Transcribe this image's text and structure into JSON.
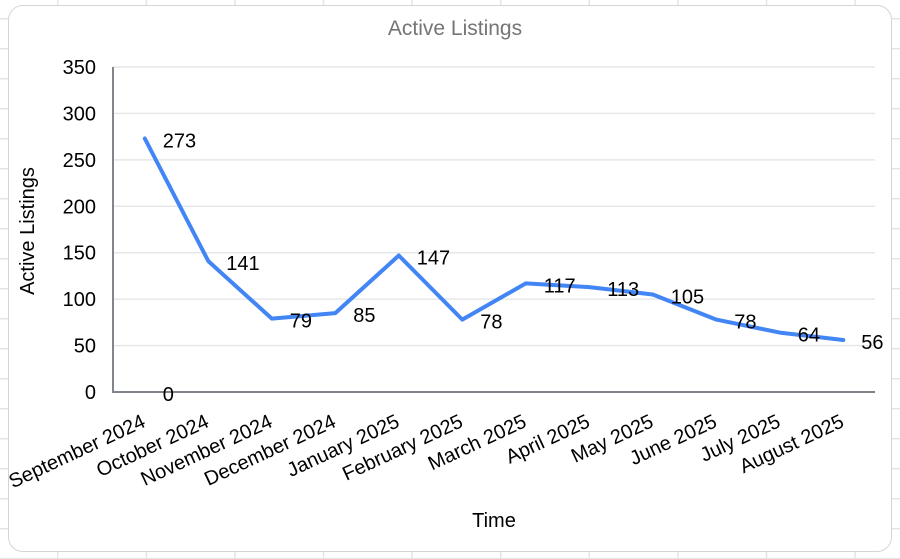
{
  "chart_data": {
    "type": "line",
    "title": "Active Listings",
    "xlabel": "Time",
    "ylabel": "Active Listings",
    "categories": [
      "September 2024",
      "October 2024",
      "November 2024",
      "December 2024",
      "January 2025",
      "February 2025",
      "March 2025",
      "April 2025",
      "May 2025",
      "June 2025",
      "July 2025",
      "August 2025"
    ],
    "series": [
      {
        "name": "Active Listings",
        "color": "#4285f4",
        "values": [
          273,
          141,
          79,
          85,
          147,
          78,
          117,
          113,
          105,
          78,
          64,
          56
        ]
      }
    ],
    "extra_point_labels": [
      {
        "text": "0",
        "category_index": 0,
        "value": 0
      }
    ],
    "yticks": [
      0,
      50,
      100,
      150,
      200,
      250,
      300,
      350
    ],
    "ylim": [
      0,
      350
    ],
    "grid": true,
    "legend_position": "none",
    "x_label_rotation_deg": -25,
    "data_labels": true
  },
  "colors": {
    "series_line": "#4285f4",
    "chart_title": "#757575",
    "axis_text": "#000000",
    "gridline": "#e7e7e7",
    "axis_line": "#80868b",
    "card_border": "#d5d5d5",
    "card_background": "#ffffff",
    "sheet_gridline": "#e4e4e4",
    "page_background": "#ffffff"
  }
}
